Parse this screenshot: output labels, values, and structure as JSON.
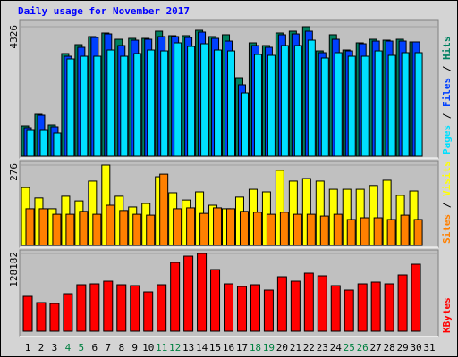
{
  "title": "Daily usage for November 2017",
  "legend_separator": " / ",
  "chart_data": [
    {
      "type": "bar",
      "ylim": [
        0,
        4326
      ],
      "yticks": [
        4326
      ],
      "series": [
        {
          "name": "Pages",
          "color": "#00e0ff",
          "values": [
            865,
            865,
            776,
            3252,
            3341,
            3341,
            3550,
            3341,
            3431,
            3550,
            3520,
            3789,
            3670,
            3759,
            3550,
            3520,
            2118,
            3401,
            3371,
            3699,
            3699,
            3878,
            3282,
            3461,
            3341,
            3341,
            3520,
            3371,
            3461,
            3461,
            null
          ]
        },
        {
          "name": "Files",
          "color": "#0040ff",
          "values": [
            955,
            1372,
            985,
            3341,
            3640,
            3968,
            4087,
            3699,
            3878,
            3908,
            3998,
            3998,
            3968,
            4147,
            3938,
            3848,
            2387,
            3699,
            3640,
            4058,
            4087,
            4177,
            3461,
            3908,
            3520,
            3759,
            3848,
            3848,
            3848,
            3819,
            null
          ]
        },
        {
          "name": "Hits",
          "color": "#008060",
          "values": [
            1014,
            1402,
            1044,
            3431,
            3729,
            3998,
            4117,
            3908,
            3938,
            3938,
            4177,
            4028,
            4028,
            4207,
            3998,
            4058,
            2625,
            3789,
            3699,
            4117,
            4177,
            4326,
            3520,
            4058,
            3550,
            3789,
            3908,
            3878,
            3908,
            3819,
            null
          ]
        }
      ]
    },
    {
      "type": "bar",
      "ylim": [
        0,
        276
      ],
      "yticks": [
        276
      ],
      "series": [
        {
          "name": "Sites",
          "color": "#ff8000",
          "values": [
            126,
            126,
            107,
            107,
            117,
            107,
            138,
            120,
            107,
            104,
            245,
            126,
            129,
            110,
            129,
            126,
            117,
            114,
            107,
            114,
            107,
            107,
            101,
            107,
            89,
            95,
            95,
            89,
            104,
            89,
            null
          ]
        },
        {
          "name": "Visits",
          "color": "#ffff00",
          "values": [
            199,
            163,
            126,
            169,
            153,
            221,
            276,
            169,
            132,
            144,
            236,
            181,
            156,
            184,
            138,
            126,
            166,
            193,
            184,
            258,
            221,
            230,
            221,
            193,
            193,
            193,
            206,
            224,
            172,
            187,
            null
          ]
        }
      ]
    },
    {
      "type": "bar",
      "ylim": [
        0,
        128182
      ],
      "yticks": [
        128182
      ],
      "categories": [
        "1",
        "2",
        "3",
        "4",
        "5",
        "6",
        "7",
        "8",
        "9",
        "10",
        "11",
        "12",
        "13",
        "14",
        "15",
        "16",
        "17",
        "18",
        "19",
        "20",
        "21",
        "22",
        "23",
        "24",
        "25",
        "26",
        "27",
        "28",
        "29",
        "30",
        "31"
      ],
      "category_colors": [
        "#000000",
        "#000000",
        "#000000",
        "#008040",
        "#008040",
        "#000000",
        "#000000",
        "#000000",
        "#000000",
        "#000000",
        "#008040",
        "#008040",
        "#000000",
        "#000000",
        "#000000",
        "#000000",
        "#000000",
        "#008040",
        "#008040",
        "#000000",
        "#000000",
        "#000000",
        "#000000",
        "#000000",
        "#008040",
        "#008040",
        "#000000",
        "#000000",
        "#000000",
        "#000000",
        "#000000"
      ],
      "series": [
        {
          "name": "KBytes",
          "color": "#ff0000",
          "values": [
            57450,
            47140,
            45660,
            61870,
            76600,
            78070,
            82490,
            76600,
            75120,
            64810,
            76600,
            113420,
            123730,
            128182,
            101640,
            78070,
            73650,
            76600,
            67760,
            89850,
            82490,
            95750,
            91330,
            75120,
            67760,
            78070,
            81020,
            78070,
            92800,
            110480,
            null
          ]
        }
      ]
    }
  ]
}
